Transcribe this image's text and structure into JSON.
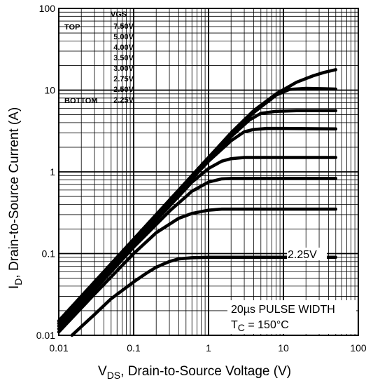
{
  "chart_data": {
    "type": "line",
    "x_scale": "log",
    "y_scale": "log",
    "xlim": [
      0.01,
      100
    ],
    "ylim": [
      0.01,
      100
    ],
    "grid": true,
    "xlabel": {
      "main": "V",
      "sub": "DS",
      "rest": ", Drain-to-Source Voltage (V)"
    },
    "ylabel": {
      "main": "I",
      "sub": "D",
      "rest": ", Drain-to-Source Current (A)"
    },
    "x_ticks": [
      "0.01",
      "0.1",
      "1",
      "10",
      "100"
    ],
    "y_ticks": [
      "0.01",
      "0.1",
      "1",
      "10",
      "100"
    ],
    "legend": {
      "placement": "top-left",
      "header": "VGS",
      "top_label": "TOP",
      "bottom_label": "BOTTOM",
      "entries": [
        "7.50V",
        "5.00V",
        "4.00V",
        "3.50V",
        "3.00V",
        "2.75V",
        "2.50V",
        "2.25V"
      ]
    },
    "annotations": {
      "curve_label": "2.25V",
      "note_line1": "20µs PULSE WIDTH",
      "note_line2_main": "T",
      "note_line2_sub": "C",
      "note_line2_rest": " = 150°C"
    },
    "series": [
      {
        "name": "7.50V",
        "x": [
          0.01,
          0.03,
          0.1,
          0.3,
          1,
          2,
          4,
          8,
          15,
          25,
          35,
          50
        ],
        "y": [
          0.015,
          0.045,
          0.15,
          0.45,
          1.5,
          3.0,
          5.6,
          9.0,
          12.5,
          15.0,
          16.5,
          17.8
        ]
      },
      {
        "name": "5.00V",
        "x": [
          0.01,
          0.03,
          0.1,
          0.3,
          1,
          2,
          4,
          8,
          12,
          20,
          35,
          50
        ],
        "y": [
          0.015,
          0.045,
          0.15,
          0.45,
          1.5,
          2.9,
          5.3,
          8.7,
          10.2,
          10.5,
          10.4,
          10.3
        ]
      },
      {
        "name": "4.00V",
        "x": [
          0.01,
          0.03,
          0.1,
          0.3,
          1,
          2,
          3.5,
          5,
          8,
          15,
          50
        ],
        "y": [
          0.014,
          0.042,
          0.14,
          0.42,
          1.4,
          2.7,
          4.3,
          5.2,
          5.5,
          5.6,
          5.6
        ]
      },
      {
        "name": "3.50V",
        "x": [
          0.01,
          0.03,
          0.1,
          0.3,
          1,
          2,
          3,
          4,
          6,
          10,
          50
        ],
        "y": [
          0.014,
          0.042,
          0.14,
          0.42,
          1.35,
          2.4,
          3.1,
          3.3,
          3.4,
          3.4,
          3.35
        ]
      },
      {
        "name": "3.00V",
        "x": [
          0.01,
          0.03,
          0.1,
          0.3,
          0.6,
          1,
          1.5,
          2,
          3,
          5,
          50
        ],
        "y": [
          0.013,
          0.04,
          0.13,
          0.38,
          0.75,
          1.1,
          1.35,
          1.45,
          1.5,
          1.5,
          1.5
        ]
      },
      {
        "name": "2.75V",
        "x": [
          0.01,
          0.03,
          0.1,
          0.3,
          0.6,
          1,
          1.5,
          2,
          3,
          50
        ],
        "y": [
          0.012,
          0.036,
          0.12,
          0.33,
          0.58,
          0.75,
          0.82,
          0.83,
          0.83,
          0.83
        ]
      },
      {
        "name": "2.50V",
        "x": [
          0.01,
          0.03,
          0.1,
          0.2,
          0.4,
          0.6,
          1,
          1.5,
          3,
          50
        ],
        "y": [
          0.011,
          0.032,
          0.1,
          0.18,
          0.27,
          0.31,
          0.34,
          0.35,
          0.35,
          0.35
        ]
      },
      {
        "name": "2.25V",
        "x": [
          0.015,
          0.03,
          0.05,
          0.1,
          0.15,
          0.2,
          0.3,
          0.4,
          0.6,
          1,
          50
        ],
        "y": [
          0.01,
          0.018,
          0.028,
          0.045,
          0.058,
          0.068,
          0.08,
          0.086,
          0.089,
          0.09,
          0.09
        ]
      }
    ]
  }
}
